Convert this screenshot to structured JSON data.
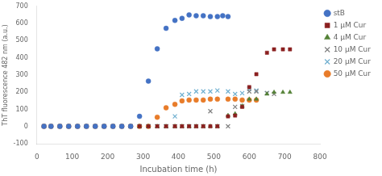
{
  "chart_data": {
    "type": "scatter",
    "xlabel": "Incubation time (h)",
    "ylabel": "ThT fluorescence 482 nm (a.u.)",
    "xlim": [
      0,
      800
    ],
    "ylim": [
      -100,
      700
    ],
    "xticks": [
      0,
      100,
      200,
      300,
      400,
      500,
      600,
      700,
      800
    ],
    "yticks": [
      -100,
      0,
      100,
      200,
      300,
      400,
      500,
      600,
      700
    ],
    "grid": false,
    "legend": "right",
    "series": [
      {
        "name": "stB",
        "color": "#4472C4",
        "marker": "circle",
        "x": [
          20,
          40,
          65,
          90,
          115,
          140,
          165,
          190,
          215,
          240,
          265,
          290,
          315,
          340,
          365,
          390,
          410,
          430,
          450,
          470,
          490,
          510,
          525,
          540
        ],
        "values": [
          2,
          2,
          2,
          2,
          2,
          2,
          2,
          2,
          2,
          2,
          2,
          60,
          265,
          453,
          572,
          618,
          630,
          650,
          645,
          645,
          640,
          640,
          645,
          640
        ]
      },
      {
        "name": "1 μM Cur",
        "color": "#8B2020",
        "marker": "square",
        "x": [
          20,
          40,
          65,
          90,
          115,
          140,
          165,
          190,
          215,
          240,
          265,
          290,
          315,
          340,
          365,
          390,
          410,
          430,
          450,
          470,
          490,
          510,
          540,
          560,
          580,
          600,
          620,
          650,
          670,
          695,
          715
        ],
        "values": [
          2,
          2,
          2,
          2,
          2,
          2,
          2,
          2,
          2,
          2,
          2,
          2,
          2,
          2,
          2,
          2,
          2,
          2,
          2,
          2,
          2,
          2,
          60,
          65,
          115,
          230,
          305,
          430,
          450,
          450,
          450
        ]
      },
      {
        "name": "4 μM Cur",
        "color": "#538135",
        "marker": "triangle",
        "x": [
          20,
          40,
          65,
          90,
          115,
          140,
          165,
          190,
          215,
          240,
          265,
          290,
          315,
          340,
          365,
          390,
          410,
          430,
          450,
          470,
          490,
          510,
          540,
          560,
          580,
          600,
          620,
          650,
          670,
          695,
          715
        ],
        "values": [
          2,
          2,
          2,
          2,
          2,
          2,
          2,
          2,
          2,
          2,
          2,
          2,
          2,
          2,
          2,
          2,
          2,
          2,
          2,
          2,
          2,
          2,
          65,
          75,
          120,
          160,
          160,
          190,
          200,
          200,
          200
        ]
      },
      {
        "name": "10 μM Cur",
        "color": "#808080",
        "marker": "x",
        "x": [
          20,
          40,
          65,
          90,
          115,
          140,
          165,
          190,
          215,
          240,
          265,
          290,
          315,
          340,
          365,
          390,
          410,
          430,
          450,
          470,
          490,
          510,
          540,
          560,
          580,
          600,
          620,
          650,
          670
        ],
        "values": [
          2,
          2,
          2,
          2,
          2,
          2,
          2,
          2,
          2,
          2,
          2,
          2,
          2,
          2,
          2,
          2,
          2,
          2,
          2,
          2,
          90,
          2,
          2,
          115,
          120,
          205,
          205,
          195,
          190
        ]
      },
      {
        "name": "20 μM Cur",
        "color": "#70B0D0",
        "marker": "x",
        "x": [
          20,
          40,
          65,
          90,
          115,
          140,
          165,
          190,
          215,
          240,
          265,
          290,
          315,
          340,
          365,
          390,
          410,
          430,
          450,
          470,
          490,
          510,
          540,
          560,
          580,
          600,
          620,
          650
        ],
        "values": [
          2,
          2,
          2,
          2,
          2,
          2,
          2,
          2,
          2,
          2,
          2,
          2,
          2,
          2,
          2,
          60,
          185,
          190,
          205,
          205,
          205,
          210,
          205,
          190,
          195,
          220,
          210,
          195
        ]
      },
      {
        "name": "50 μM Cur",
        "color": "#E87C2A",
        "marker": "circle",
        "x": [
          20,
          40,
          65,
          90,
          115,
          140,
          165,
          190,
          215,
          240,
          265,
          290,
          315,
          340,
          365,
          390,
          410,
          430,
          450,
          470,
          490,
          510,
          540,
          560,
          580,
          600,
          620
        ],
        "values": [
          2,
          2,
          2,
          2,
          2,
          2,
          2,
          2,
          2,
          2,
          2,
          2,
          2,
          55,
          110,
          130,
          150,
          155,
          155,
          155,
          160,
          160,
          160,
          160,
          155,
          155,
          155
        ]
      }
    ]
  }
}
